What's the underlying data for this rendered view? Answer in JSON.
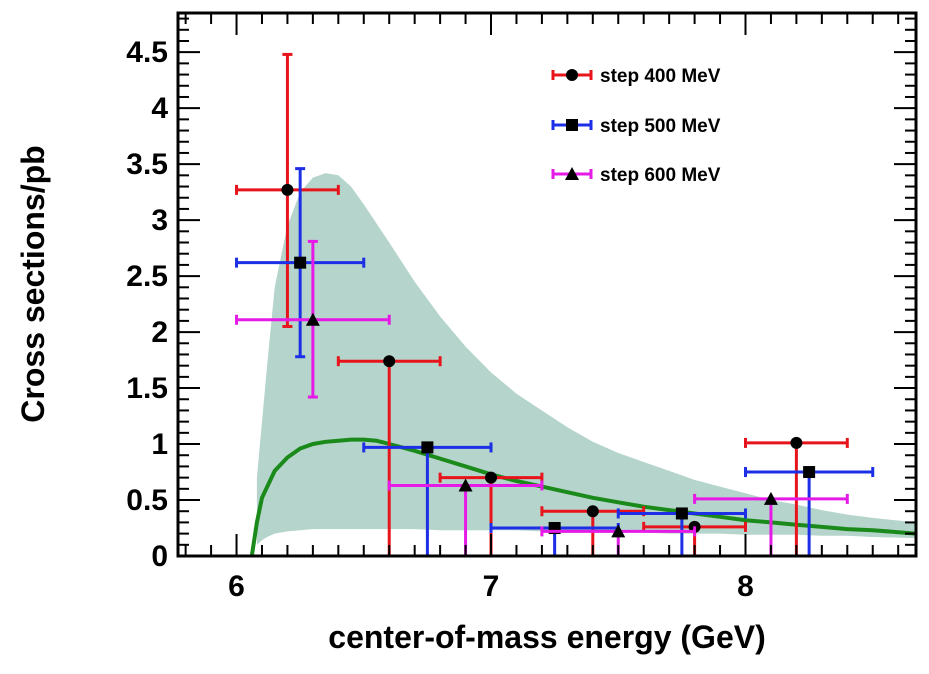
{
  "chart_data": {
    "type": "scatter",
    "xlabel": "center-of-mass energy (GeV)",
    "ylabel": "Cross sections/pb",
    "xlim": [
      5.77,
      8.67
    ],
    "ylim": [
      0,
      4.85
    ],
    "x_ticks": [
      "6",
      "7",
      "8"
    ],
    "y_ticks": [
      "0",
      "0.5",
      "1",
      "1.5",
      "2",
      "2.5",
      "3",
      "3.5",
      "4",
      "4.5"
    ],
    "colors": {
      "band": "#b5d4cb",
      "curve": "#1a8a1a",
      "series_400": "#e8141b",
      "series_500": "#1c2fe6",
      "series_600": "#e61ae6",
      "marker": "#000000"
    },
    "series": [
      {
        "name": "step 400 MeV",
        "marker": "circle",
        "color_key": "series_400",
        "points": [
          {
            "x": 6.2,
            "y": 3.27,
            "xerr": 0.2,
            "ylow": 2.05,
            "yhigh": 4.48
          },
          {
            "x": 6.6,
            "y": 1.74,
            "xerr": 0.2,
            "ylow": 0,
            "yhigh": 1.74
          },
          {
            "x": 7.0,
            "y": 0.7,
            "xerr": 0.2,
            "ylow": 0,
            "yhigh": 0.7
          },
          {
            "x": 7.4,
            "y": 0.4,
            "xerr": 0.2,
            "ylow": 0,
            "yhigh": 0.4
          },
          {
            "x": 7.8,
            "y": 0.26,
            "xerr": 0.2,
            "ylow": 0,
            "yhigh": 0.26
          },
          {
            "x": 8.2,
            "y": 1.01,
            "xerr": 0.2,
            "ylow": 0,
            "yhigh": 1.01
          }
        ]
      },
      {
        "name": "step 500 MeV",
        "marker": "square",
        "color_key": "series_500",
        "points": [
          {
            "x": 6.25,
            "y": 2.62,
            "xerr": 0.25,
            "ylow": 1.78,
            "yhigh": 3.46
          },
          {
            "x": 6.75,
            "y": 0.97,
            "xerr": 0.25,
            "ylow": 0,
            "yhigh": 0.97
          },
          {
            "x": 7.25,
            "y": 0.25,
            "xerr": 0.25,
            "ylow": 0,
            "yhigh": 0.25
          },
          {
            "x": 7.75,
            "y": 0.38,
            "xerr": 0.25,
            "ylow": 0,
            "yhigh": 0.38
          },
          {
            "x": 8.25,
            "y": 0.75,
            "xerr": 0.25,
            "ylow": 0,
            "yhigh": 0.75
          }
        ]
      },
      {
        "name": "step 600 MeV",
        "marker": "triangle",
        "color_key": "series_600",
        "points": [
          {
            "x": 6.3,
            "y": 2.11,
            "xerr": 0.3,
            "ylow": 1.42,
            "yhigh": 2.81
          },
          {
            "x": 6.9,
            "y": 0.63,
            "xerr": 0.3,
            "ylow": 0,
            "yhigh": 0.63
          },
          {
            "x": 7.5,
            "y": 0.22,
            "xerr": 0.3,
            "ylow": 0,
            "yhigh": 0.22
          },
          {
            "x": 8.1,
            "y": 0.51,
            "xerr": 0.3,
            "ylow": 0,
            "yhigh": 0.51
          }
        ]
      }
    ],
    "curve": {
      "x": [
        6.06,
        6.08,
        6.1,
        6.15,
        6.2,
        6.25,
        6.3,
        6.35,
        6.4,
        6.45,
        6.5,
        6.55,
        6.6,
        6.7,
        6.8,
        6.9,
        7.0,
        7.1,
        7.2,
        7.3,
        7.4,
        7.5,
        7.6,
        7.7,
        7.8,
        7.9,
        8.0,
        8.1,
        8.2,
        8.3,
        8.4,
        8.5,
        8.67
      ],
      "y": [
        0.0,
        0.3,
        0.52,
        0.76,
        0.88,
        0.96,
        1.0,
        1.02,
        1.03,
        1.04,
        1.04,
        1.03,
        1.0,
        0.94,
        0.87,
        0.8,
        0.73,
        0.67,
        0.62,
        0.57,
        0.52,
        0.48,
        0.44,
        0.41,
        0.38,
        0.35,
        0.32,
        0.3,
        0.28,
        0.26,
        0.24,
        0.23,
        0.2
      ]
    },
    "band": {
      "x": [
        6.08,
        6.1,
        6.12,
        6.15,
        6.2,
        6.25,
        6.3,
        6.35,
        6.4,
        6.45,
        6.5,
        6.6,
        6.7,
        6.8,
        6.9,
        7.0,
        7.1,
        7.2,
        7.3,
        7.4,
        7.5,
        7.6,
        7.7,
        7.8,
        7.9,
        8.0,
        8.1,
        8.2,
        8.3,
        8.4,
        8.5,
        8.67
      ],
      "upper": [
        0.7,
        1.2,
        1.7,
        2.4,
        2.95,
        3.25,
        3.38,
        3.42,
        3.4,
        3.3,
        3.14,
        2.8,
        2.45,
        2.14,
        1.87,
        1.64,
        1.45,
        1.3,
        1.15,
        1.02,
        0.92,
        0.84,
        0.76,
        0.68,
        0.62,
        0.56,
        0.5,
        0.46,
        0.41,
        0.37,
        0.34,
        0.3
      ],
      "lower": [
        0.1,
        0.14,
        0.17,
        0.2,
        0.22,
        0.23,
        0.24,
        0.24,
        0.24,
        0.24,
        0.24,
        0.24,
        0.24,
        0.23,
        0.23,
        0.23,
        0.23,
        0.22,
        0.22,
        0.22,
        0.21,
        0.21,
        0.2,
        0.2,
        0.2,
        0.19,
        0.19,
        0.19,
        0.18,
        0.18,
        0.17,
        0.16
      ]
    }
  }
}
